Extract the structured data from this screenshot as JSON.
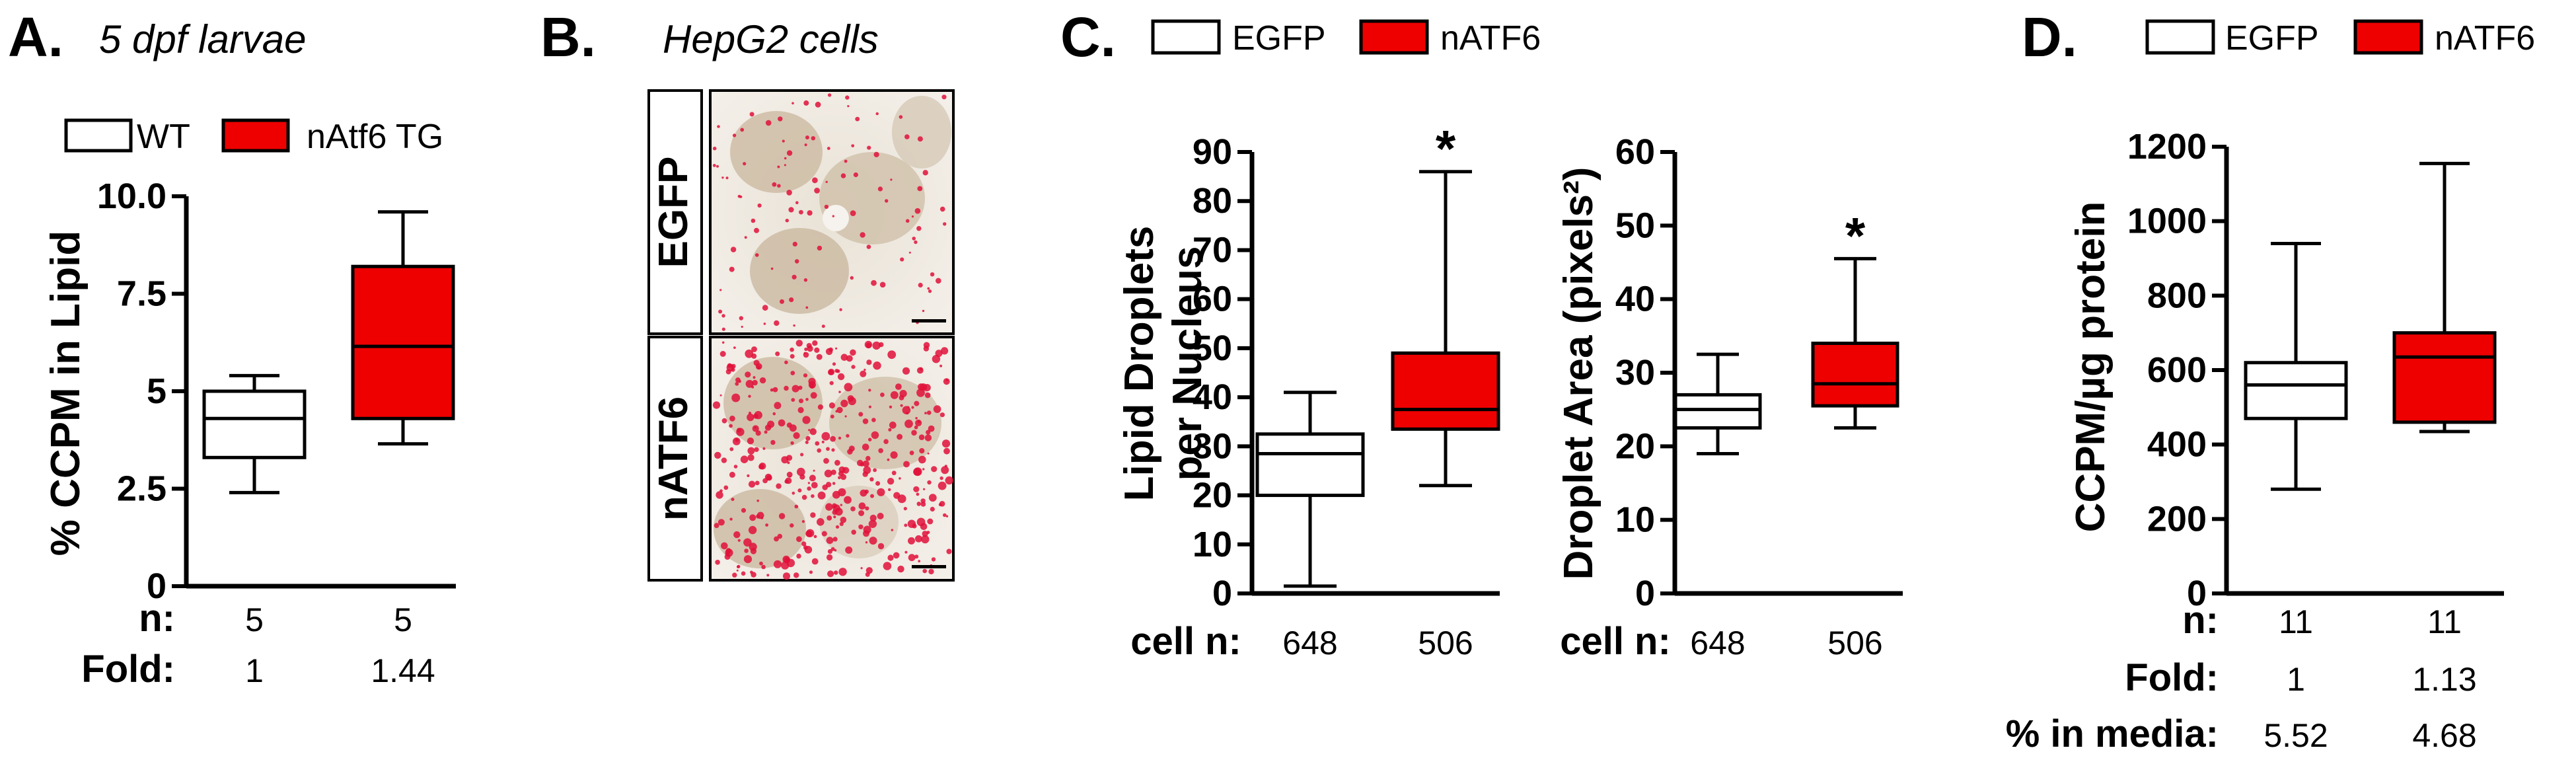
{
  "colors": {
    "control": "#ffffff",
    "treatment": "#ee0000",
    "stroke": "#000000"
  },
  "panel_a": {
    "letter": "A.",
    "subtitle": "5 dpf larvae",
    "legend": [
      "WT",
      "nAtf6 TG"
    ],
    "row_n_label": "n:",
    "row_fold_label": "Fold:",
    "n_values": [
      "5",
      "5"
    ],
    "fold_values": [
      "1",
      "1.44"
    ]
  },
  "panel_b": {
    "letter": "B.",
    "subtitle": "HepG2 cells",
    "row_labels": [
      "EGFP",
      "nATF6"
    ]
  },
  "panel_c": {
    "letter": "C.",
    "legend": [
      "EGFP",
      "nATF6"
    ],
    "row_label": "cell n:",
    "left_n_values": [
      "648",
      "506"
    ],
    "right_n_values": [
      "648",
      "506"
    ],
    "significance": "*"
  },
  "panel_d": {
    "letter": "D.",
    "legend": [
      "EGFP",
      "nATF6"
    ],
    "row_n_label": "n:",
    "row_fold_label": "Fold:",
    "row_media_label": "% in media:",
    "n_values": [
      "11",
      "11"
    ],
    "fold_values": [
      "1",
      "1.13"
    ],
    "media_values": [
      "5.52",
      "4.68"
    ]
  },
  "chart_data": [
    {
      "type": "box",
      "panel": "A",
      "ylabel": "% CCPM in Lipid",
      "ylim": [
        0,
        10
      ],
      "yticks": [
        "0",
        "2.5",
        "5",
        "7.5",
        "10.0"
      ],
      "ytick_values": [
        0,
        2.5,
        5,
        7.5,
        10
      ],
      "series": [
        {
          "name": "WT",
          "min": 2.4,
          "q1": 3.3,
          "median": 4.3,
          "q3": 5.0,
          "max": 5.4
        },
        {
          "name": "nAtf6 TG",
          "min": 3.65,
          "q1": 4.3,
          "median": 6.15,
          "q3": 8.2,
          "max": 9.6
        }
      ]
    },
    {
      "type": "box",
      "panel": "C-left",
      "ylabel": [
        "Lipid Droplets",
        "per Nucleus"
      ],
      "ylim": [
        0,
        90
      ],
      "yticks": [
        "0",
        "10",
        "20",
        "30",
        "40",
        "50",
        "60",
        "70",
        "80",
        "90"
      ],
      "ytick_values": [
        0,
        10,
        20,
        30,
        40,
        50,
        60,
        70,
        80,
        90
      ],
      "series": [
        {
          "name": "EGFP",
          "min": 1.5,
          "q1": 20,
          "median": 28.5,
          "q3": 32.5,
          "max": 41
        },
        {
          "name": "nATF6",
          "min": 22,
          "q1": 33.5,
          "median": 37.5,
          "q3": 49,
          "max": 86
        }
      ],
      "annotations": [
        {
          "series": "nATF6",
          "text": "*"
        }
      ]
    },
    {
      "type": "box",
      "panel": "C-right",
      "ylabel": "Droplet Area (pixels²)",
      "ylim": [
        0,
        60
      ],
      "yticks": [
        "0",
        "10",
        "20",
        "30",
        "40",
        "50",
        "60"
      ],
      "ytick_values": [
        0,
        10,
        20,
        30,
        40,
        50,
        60
      ],
      "series": [
        {
          "name": "EGFP",
          "min": 19,
          "q1": 22.5,
          "median": 25,
          "q3": 27,
          "max": 32.5
        },
        {
          "name": "nATF6",
          "min": 22.5,
          "q1": 25.5,
          "median": 28.5,
          "q3": 34,
          "max": 45.5
        }
      ],
      "annotations": [
        {
          "series": "nATF6",
          "text": "*"
        }
      ]
    },
    {
      "type": "box",
      "panel": "D",
      "ylabel": "CCPM/µg protein",
      "ylim": [
        0,
        1200
      ],
      "yticks": [
        "0",
        "200",
        "400",
        "600",
        "800",
        "1000",
        "1200"
      ],
      "ytick_values": [
        0,
        200,
        400,
        600,
        800,
        1000,
        1200
      ],
      "series": [
        {
          "name": "EGFP",
          "min": 280,
          "q1": 470,
          "median": 560,
          "q3": 620,
          "max": 940
        },
        {
          "name": "nATF6",
          "min": 435,
          "q1": 460,
          "median": 635,
          "q3": 700,
          "max": 1155
        }
      ]
    }
  ]
}
